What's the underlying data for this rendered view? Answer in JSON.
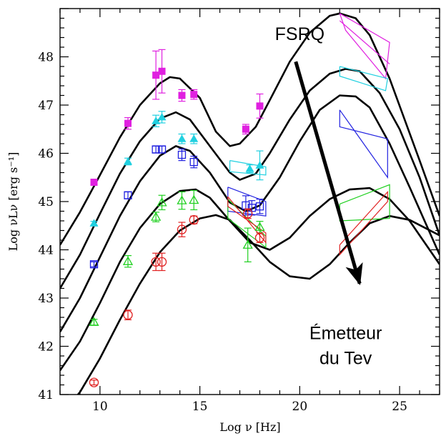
{
  "chart_data": {
    "type": "scatter",
    "xlabel": "Log ν  [Hz]",
    "ylabel": "Log νLν  [erg s⁻¹]",
    "xlim": [
      8,
      27
    ],
    "ylim": [
      41,
      49.0
    ],
    "xticks": [
      10,
      15,
      20,
      25
    ],
    "yticks": [
      41,
      42,
      43,
      44,
      45,
      46,
      47,
      48
    ],
    "grid": false,
    "legend": "none",
    "annotations": [
      {
        "text": "FSRQ",
        "x": 20.0,
        "y": 48.35
      },
      {
        "text": "Émetteur",
        "x": 22.3,
        "y": 42.15
      },
      {
        "text": "du Tev",
        "x": 22.3,
        "y": 41.63
      }
    ],
    "arrow": {
      "from": [
        19.8,
        47.9
      ],
      "to": [
        23.0,
        43.3
      ]
    },
    "series": [
      {
        "marker": "filled-square",
        "color": "#e020e0",
        "points": [
          [
            9.7,
            45.4,
            0.05
          ],
          [
            11.4,
            46.62,
            0.12
          ],
          [
            12.8,
            47.62,
            0.5
          ],
          [
            13.1,
            47.7,
            0.45
          ],
          [
            14.1,
            47.2,
            0.12
          ],
          [
            14.7,
            47.22,
            0.1
          ],
          [
            17.3,
            46.5,
            0.1
          ],
          [
            18.0,
            46.98,
            0.25
          ]
        ],
        "bowties": [
          [
            [
              22.0,
              48.9
            ],
            [
              24.5,
              48.3
            ],
            [
              24.3,
              47.55
            ],
            [
              22.3,
              48.55
            ],
            [
              22.0,
              48.9
            ]
          ],
          [
            [
              22.0,
              48.75
            ],
            [
              24.5,
              47.85
            ]
          ]
        ]
      },
      {
        "marker": "filled-triangle",
        "color": "#20d0e0",
        "points": [
          [
            9.7,
            44.55,
            0.04
          ],
          [
            11.4,
            45.83,
            0.07
          ],
          [
            12.8,
            46.67,
            0.12
          ],
          [
            13.1,
            46.75,
            0.12
          ],
          [
            14.1,
            46.3,
            0.1
          ],
          [
            14.7,
            46.3,
            0.1
          ],
          [
            17.5,
            45.68,
            0.08
          ],
          [
            18.0,
            45.75,
            0.3
          ]
        ],
        "bowties": [
          [
            [
              16.5,
              45.85
            ],
            [
              18.3,
              45.72
            ],
            [
              18.3,
              45.55
            ],
            [
              16.5,
              45.62
            ],
            [
              16.5,
              45.85
            ]
          ],
          [
            [
              22.0,
              47.8
            ],
            [
              24.4,
              47.55
            ],
            [
              24.3,
              47.3
            ],
            [
              22.0,
              47.6
            ],
            [
              22.0,
              47.8
            ]
          ]
        ]
      },
      {
        "marker": "open-square",
        "color": "#2020e0",
        "points": [
          [
            9.7,
            43.7,
            0.05
          ],
          [
            11.4,
            45.13,
            0.07
          ],
          [
            12.8,
            46.08,
            0.07
          ],
          [
            13.1,
            46.08,
            0.07
          ],
          [
            14.1,
            45.97,
            0.12
          ],
          [
            14.7,
            45.82,
            0.12
          ],
          [
            17.3,
            44.92,
            0.2
          ],
          [
            17.6,
            44.87,
            0.15
          ],
          [
            18.0,
            44.9,
            0.15
          ]
        ],
        "bowties": [
          [
            [
              16.4,
              45.3
            ],
            [
              18.3,
              45.0
            ],
            [
              18.3,
              44.7
            ],
            [
              16.4,
              44.8
            ],
            [
              16.4,
              45.3
            ]
          ],
          [
            [
              22.0,
              46.9
            ],
            [
              24.4,
              45.5
            ],
            [
              24.4,
              46.3
            ],
            [
              22.0,
              46.55
            ],
            [
              22.0,
              46.9
            ]
          ]
        ]
      },
      {
        "marker": "open-triangle",
        "color": "#20d020",
        "points": [
          [
            9.7,
            42.5,
            0.06
          ],
          [
            11.4,
            43.76,
            0.12
          ],
          [
            12.8,
            44.68,
            0.1
          ],
          [
            13.1,
            44.98,
            0.15
          ],
          [
            14.1,
            45.02,
            0.18
          ],
          [
            14.7,
            45.03,
            0.2
          ],
          [
            17.4,
            44.1,
            0.35
          ],
          [
            18.0,
            44.47,
            0.12
          ]
        ],
        "bowties": [
          [
            [
              16.4,
              45.05
            ],
            [
              18.3,
              44.28
            ],
            [
              18.3,
              44.05
            ],
            [
              16.4,
              44.65
            ],
            [
              16.4,
              45.05
            ]
          ],
          [
            [
              22.0,
              44.95
            ],
            [
              24.5,
              45.35
            ],
            [
              24.5,
              44.65
            ],
            [
              22.0,
              44.6
            ],
            [
              22.0,
              44.95
            ]
          ]
        ]
      },
      {
        "marker": "open-circle",
        "color": "#e02020",
        "points": [
          [
            9.7,
            41.25,
            0.05
          ],
          [
            11.4,
            42.65,
            0.1
          ],
          [
            12.8,
            43.75,
            0.18
          ],
          [
            13.1,
            43.75,
            0.18
          ],
          [
            14.1,
            44.42,
            0.15
          ],
          [
            14.7,
            44.62,
            0.08
          ],
          [
            17.4,
            44.75,
            0.1
          ],
          [
            18.0,
            44.25,
            0.1
          ]
        ],
        "bowties": [
          [
            [
              16.4,
              45.1
            ],
            [
              18.3,
              44.15
            ],
            [
              18.3,
              44.35
            ],
            [
              16.4,
              44.9
            ],
            [
              16.4,
              45.1
            ]
          ],
          [
            [
              22.0,
              44.1
            ],
            [
              24.4,
              45.2
            ],
            [
              24.4,
              45.0
            ],
            [
              22.0,
              43.9
            ],
            [
              22.0,
              44.1
            ]
          ]
        ]
      }
    ],
    "models": [
      [
        [
          8.0,
          44.1
        ],
        [
          9.0,
          44.78
        ],
        [
          10.0,
          45.55
        ],
        [
          11.0,
          46.33
        ],
        [
          12.0,
          47.0
        ],
        [
          13.0,
          47.45
        ],
        [
          13.5,
          47.58
        ],
        [
          14.0,
          47.55
        ],
        [
          15.0,
          47.15
        ],
        [
          15.8,
          46.45
        ],
        [
          16.5,
          46.15
        ],
        [
          17.0,
          46.2
        ],
        [
          17.8,
          46.55
        ],
        [
          18.5,
          47.1
        ],
        [
          19.5,
          47.9
        ],
        [
          20.5,
          48.5
        ],
        [
          21.5,
          48.85
        ],
        [
          22.0,
          48.9
        ],
        [
          22.8,
          48.8
        ],
        [
          23.5,
          48.45
        ],
        [
          24.5,
          47.55
        ],
        [
          26.0,
          45.85
        ],
        [
          27.0,
          44.7
        ]
      ],
      [
        [
          8.0,
          43.2
        ],
        [
          9.0,
          43.9
        ],
        [
          10.0,
          44.75
        ],
        [
          11.0,
          45.58
        ],
        [
          12.0,
          46.25
        ],
        [
          13.0,
          46.72
        ],
        [
          13.8,
          46.85
        ],
        [
          14.5,
          46.7
        ],
        [
          15.5,
          46.15
        ],
        [
          16.5,
          45.6
        ],
        [
          17.0,
          45.45
        ],
        [
          17.8,
          45.58
        ],
        [
          18.5,
          46.0
        ],
        [
          19.5,
          46.7
        ],
        [
          20.5,
          47.3
        ],
        [
          21.5,
          47.65
        ],
        [
          22.3,
          47.75
        ],
        [
          23.0,
          47.7
        ],
        [
          24.0,
          47.25
        ],
        [
          25.0,
          46.5
        ],
        [
          26.0,
          45.5
        ],
        [
          27.0,
          44.3
        ]
      ],
      [
        [
          8.0,
          42.3
        ],
        [
          9.0,
          43.0
        ],
        [
          10.0,
          43.85
        ],
        [
          11.0,
          44.7
        ],
        [
          12.0,
          45.42
        ],
        [
          13.0,
          45.95
        ],
        [
          13.8,
          46.15
        ],
        [
          14.5,
          46.05
        ],
        [
          15.5,
          45.6
        ],
        [
          16.5,
          44.98
        ],
        [
          17.3,
          44.8
        ],
        [
          18.0,
          44.92
        ],
        [
          19.0,
          45.5
        ],
        [
          20.0,
          46.25
        ],
        [
          21.0,
          46.9
        ],
        [
          22.0,
          47.2
        ],
        [
          22.8,
          47.18
        ],
        [
          23.5,
          46.95
        ],
        [
          24.5,
          46.2
        ],
        [
          25.5,
          45.3
        ],
        [
          27.0,
          43.9
        ]
      ],
      [
        [
          8.0,
          41.5
        ],
        [
          9.0,
          42.1
        ],
        [
          10.0,
          42.9
        ],
        [
          11.0,
          43.75
        ],
        [
          12.0,
          44.45
        ],
        [
          13.0,
          44.95
        ],
        [
          14.0,
          45.22
        ],
        [
          14.8,
          45.25
        ],
        [
          15.5,
          45.08
        ],
        [
          16.5,
          44.6
        ],
        [
          17.5,
          44.15
        ],
        [
          18.5,
          44.0
        ],
        [
          19.5,
          44.25
        ],
        [
          20.5,
          44.7
        ],
        [
          21.5,
          45.05
        ],
        [
          22.5,
          45.25
        ],
        [
          23.5,
          45.28
        ],
        [
          24.5,
          45.05
        ],
        [
          25.5,
          44.6
        ],
        [
          27.0,
          43.7
        ]
      ],
      [
        [
          8.0,
          40.55
        ],
        [
          9.0,
          41.05
        ],
        [
          10.0,
          41.75
        ],
        [
          11.0,
          42.55
        ],
        [
          12.0,
          43.3
        ],
        [
          13.0,
          43.95
        ],
        [
          14.0,
          44.4
        ],
        [
          15.0,
          44.65
        ],
        [
          15.8,
          44.72
        ],
        [
          16.5,
          44.62
        ],
        [
          17.5,
          44.2
        ],
        [
          18.5,
          43.75
        ],
        [
          19.5,
          43.45
        ],
        [
          20.5,
          43.4
        ],
        [
          21.5,
          43.7
        ],
        [
          22.5,
          44.15
        ],
        [
          23.5,
          44.55
        ],
        [
          24.5,
          44.7
        ],
        [
          25.5,
          44.62
        ],
        [
          27.0,
          44.3
        ]
      ]
    ]
  }
}
